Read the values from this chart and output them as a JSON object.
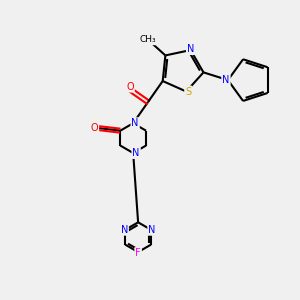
{
  "title": "",
  "background_color": "#f0f0f0",
  "atom_colors": {
    "C": "#000000",
    "N": "#0000ff",
    "O": "#ff0000",
    "S": "#ccaa00",
    "F": "#ff00ff",
    "H": "#000000"
  }
}
